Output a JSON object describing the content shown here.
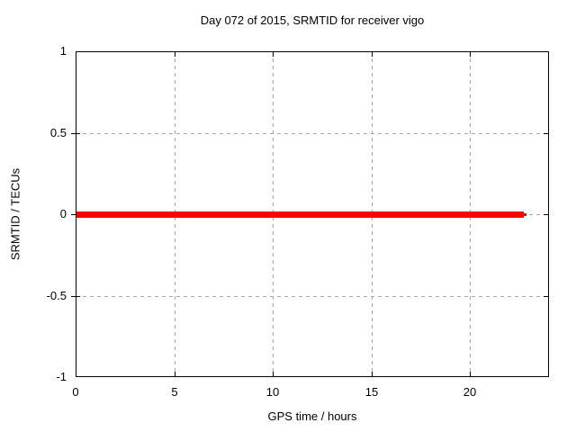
{
  "chart_data": {
    "type": "line",
    "title": "Day 072 of 2015, SRMTID for receiver vigo",
    "xlabel": "GPS time / hours",
    "ylabel": "SRMTID / TECUs",
    "xlim": [
      0,
      24
    ],
    "ylim": [
      -1,
      1
    ],
    "xticks": {
      "values": [
        0,
        5,
        10,
        15,
        20
      ],
      "labels": [
        "0",
        "5",
        "10",
        "15",
        "20"
      ]
    },
    "yticks": {
      "values": [
        1,
        0.5,
        0,
        -0.5,
        -1
      ],
      "labels": [
        "1",
        "0.5",
        "0",
        "-0.5",
        "-1"
      ]
    },
    "grid": true,
    "legend": "none",
    "series": [
      {
        "name": "SRMTID",
        "color": "#ff0000",
        "line_thickness_px": 7,
        "x": [
          0,
          22.7
        ],
        "y": [
          0,
          0
        ]
      }
    ]
  },
  "colors": {
    "background": "#ffffff",
    "plot_border": "#000000",
    "grid": "#a8a8a8",
    "text": "#000000",
    "series": "#ff0000"
  }
}
